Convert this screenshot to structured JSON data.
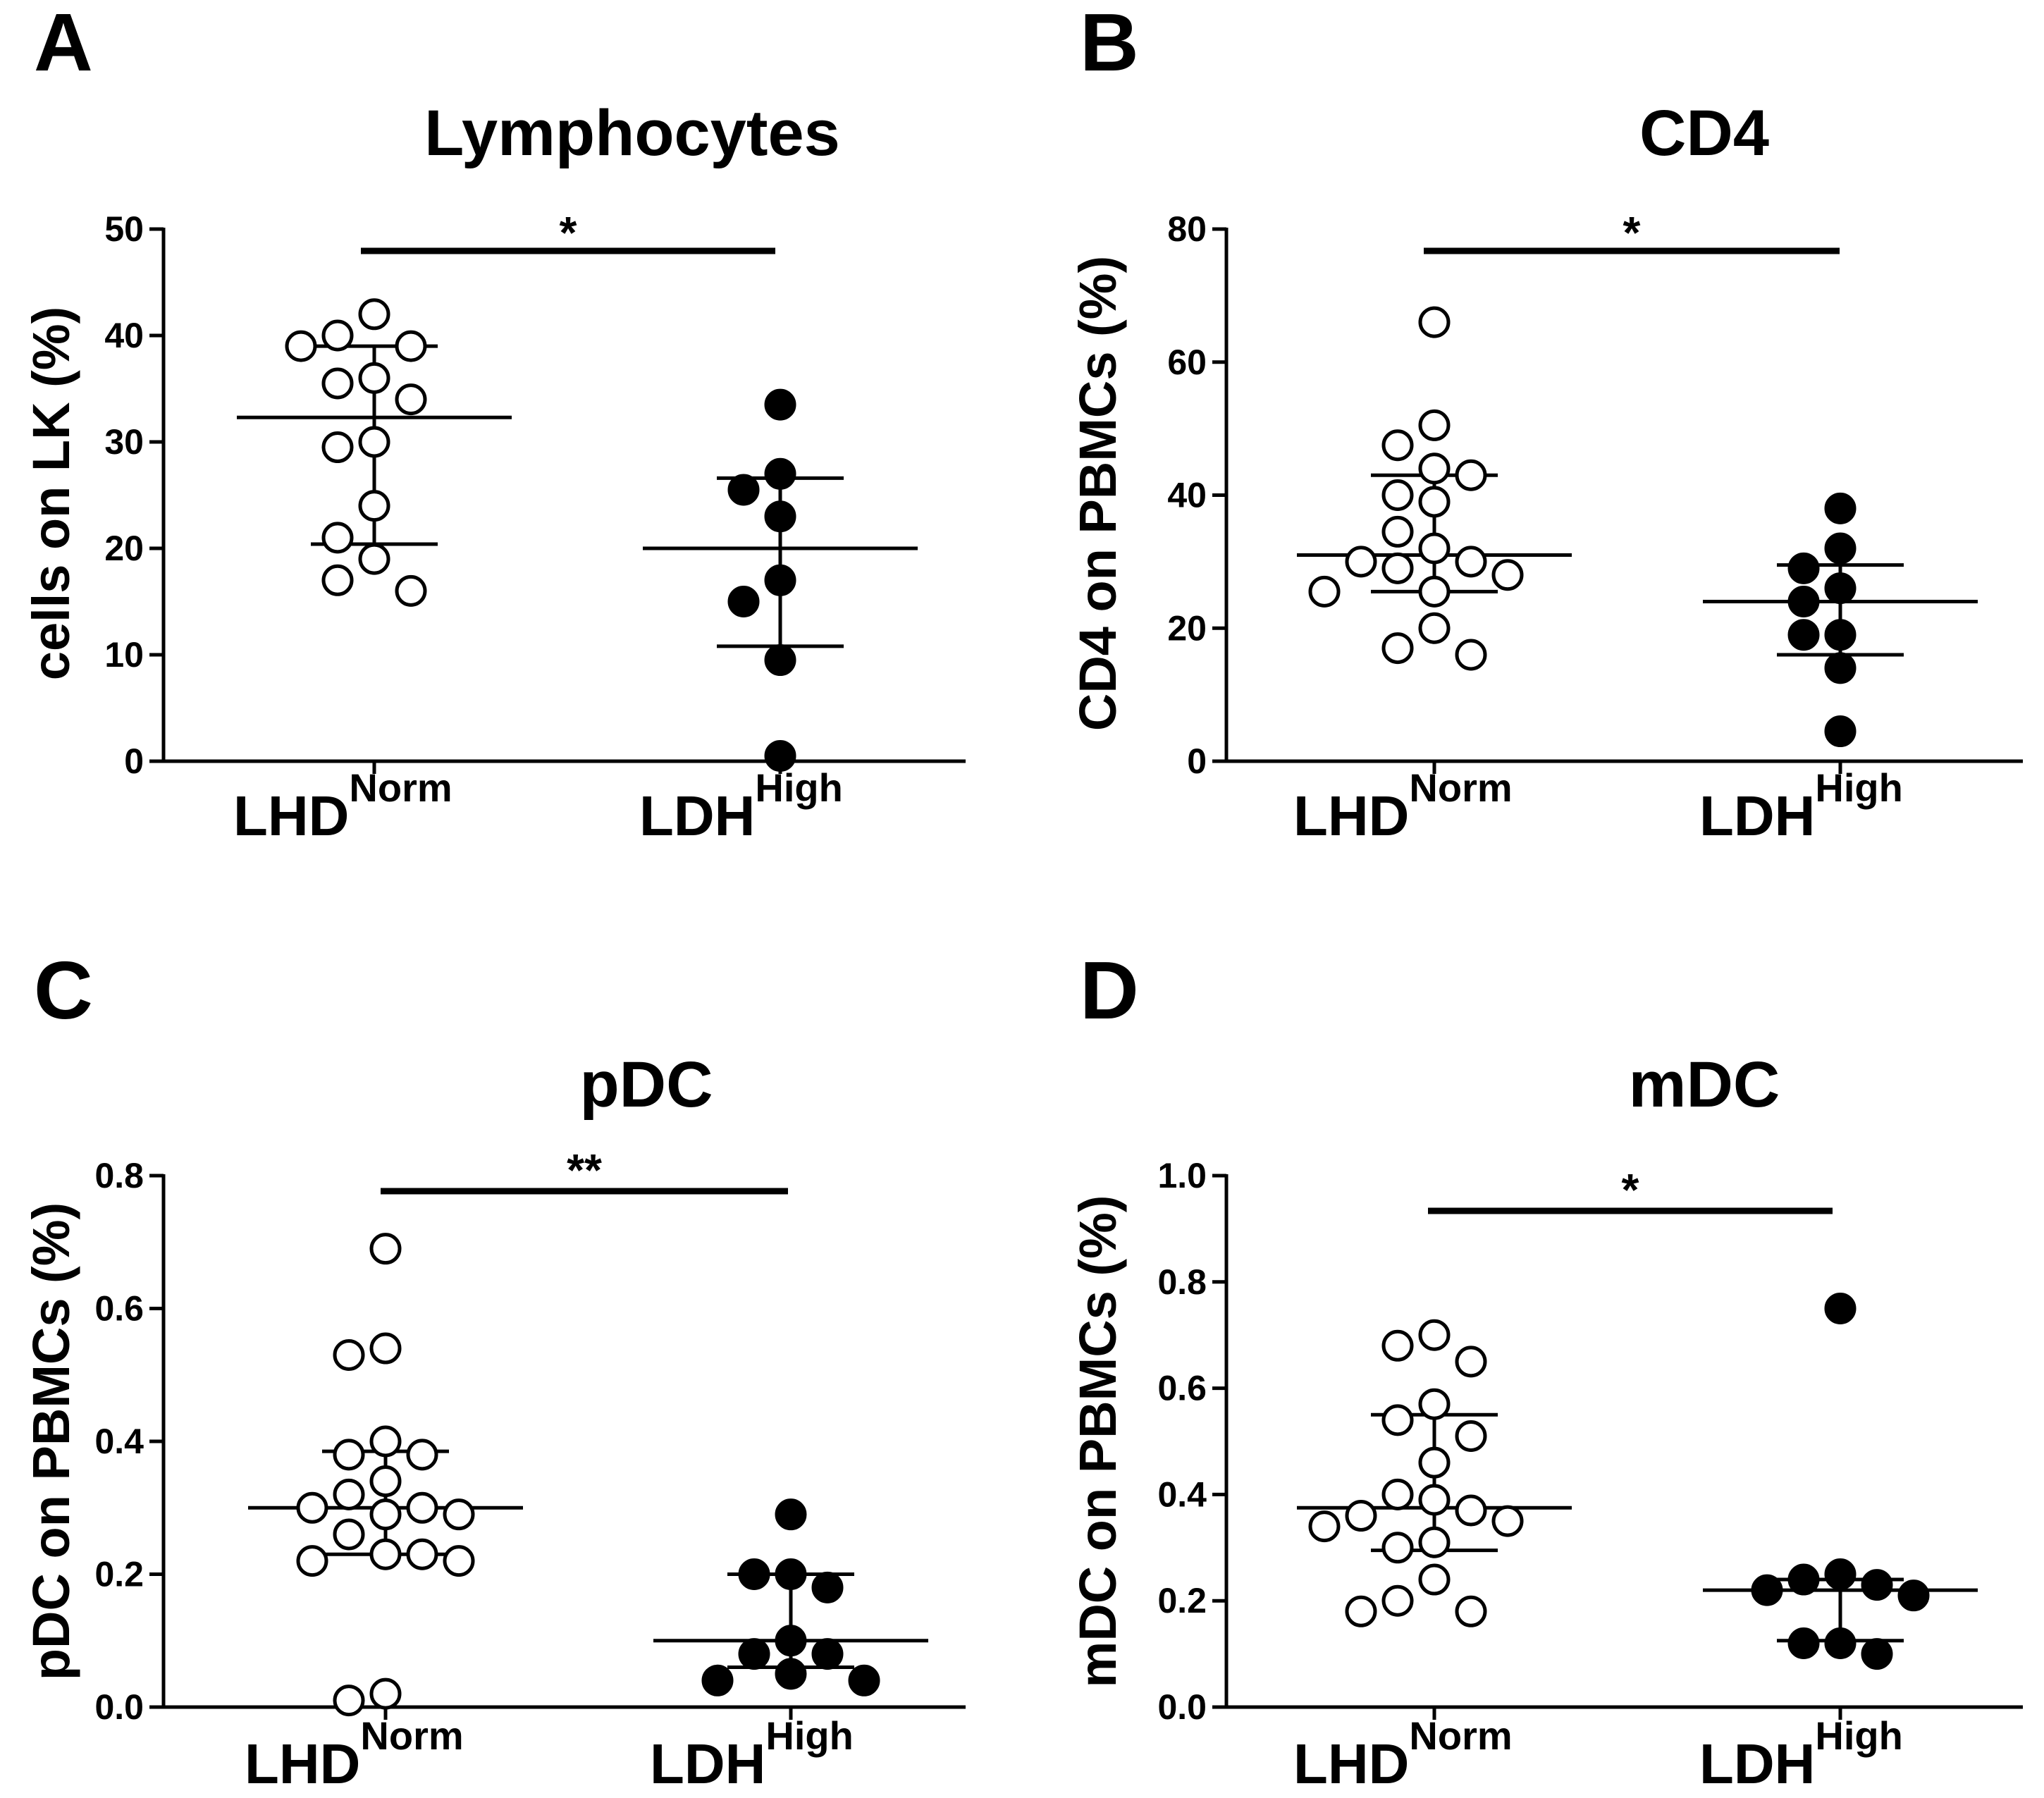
{
  "chart_data": [
    {
      "panel": "A",
      "type": "scatter",
      "title": "Lymphocytes",
      "ylabel": "cells on LK (%)",
      "ylim": [
        0,
        50
      ],
      "yticks": [
        "0",
        "10",
        "20",
        "30",
        "40",
        "50"
      ],
      "categories": [
        {
          "main": "LHD",
          "sup": "Norm"
        },
        {
          "main": "LDH",
          "sup": "High"
        }
      ],
      "groups": [
        {
          "filled": false,
          "values": [
            40,
            39,
            39,
            42,
            35.5,
            34,
            36,
            29.5,
            30,
            24,
            21,
            19,
            16,
            17
          ],
          "median": 32.3,
          "q1": 20.4,
          "q3": 39
        },
        {
          "filled": true,
          "values": [
            33.5,
            27,
            25.5,
            23,
            17,
            15,
            9.5,
            0.5
          ],
          "median": 20,
          "q1": 10.8,
          "q3": 26.6
        }
      ],
      "significance": "*"
    },
    {
      "panel": "B",
      "type": "scatter",
      "title": "CD4",
      "ylabel": "CD4 on PBMCs (%)",
      "ylim": [
        0,
        80
      ],
      "yticks": [
        "0",
        "20",
        "40",
        "60",
        "80"
      ],
      "categories": [
        {
          "main": "LHD",
          "sup": "Norm"
        },
        {
          "main": "LDH",
          "sup": "High"
        }
      ],
      "groups": [
        {
          "filled": false,
          "values": [
            66,
            50.5,
            47.5,
            44,
            43,
            40,
            39,
            34.5,
            32,
            30,
            30,
            29,
            28,
            25.5,
            25.5,
            20,
            17,
            16
          ],
          "median": 31,
          "q1": 25.5,
          "q3": 43
        },
        {
          "filled": true,
          "values": [
            38,
            32,
            29,
            26,
            24,
            19,
            19,
            14,
            4.5
          ],
          "median": 24,
          "q1": 16,
          "q3": 29.5
        }
      ],
      "significance": "*"
    },
    {
      "panel": "C",
      "type": "scatter",
      "title": "pDC",
      "ylabel": "pDC on PBMCs (%)",
      "ylim": [
        0,
        0.8
      ],
      "yticks": [
        "0.0",
        "0.2",
        "0.4",
        "0.6",
        "0.8"
      ],
      "categories": [
        {
          "main": "LHD",
          "sup": "Norm"
        },
        {
          "main": "LDH",
          "sup": "High"
        }
      ],
      "groups": [
        {
          "filled": false,
          "values": [
            0.69,
            0.54,
            0.53,
            0.4,
            0.38,
            0.38,
            0.34,
            0.32,
            0.3,
            0.3,
            0.29,
            0.29,
            0.26,
            0.23,
            0.23,
            0.22,
            0.22,
            0.02,
            0.01
          ],
          "median": 0.3,
          "q1": 0.23,
          "q3": 0.385
        },
        {
          "filled": true,
          "values": [
            0.29,
            0.2,
            0.2,
            0.18,
            0.1,
            0.08,
            0.08,
            0.05,
            0.04,
            0.04
          ],
          "median": 0.1,
          "q1": 0.06,
          "q3": 0.2
        }
      ],
      "significance": "**"
    },
    {
      "panel": "D",
      "type": "scatter",
      "title": "mDC",
      "ylabel": "mDC on PBMCs (%)",
      "ylim": [
        0,
        1.0
      ],
      "yticks": [
        "0.0",
        "0.2",
        "0.4",
        "0.6",
        "0.8",
        "1.0"
      ],
      "categories": [
        {
          "main": "LHD",
          "sup": "Norm"
        },
        {
          "main": "LDH",
          "sup": "High"
        }
      ],
      "groups": [
        {
          "filled": false,
          "values": [
            0.7,
            0.68,
            0.65,
            0.57,
            0.54,
            0.51,
            0.46,
            0.4,
            0.39,
            0.37,
            0.36,
            0.34,
            0.35,
            0.31,
            0.3,
            0.24,
            0.2,
            0.18,
            0.18
          ],
          "median": 0.375,
          "q1": 0.295,
          "q3": 0.55
        },
        {
          "filled": true,
          "values": [
            0.75,
            0.25,
            0.24,
            0.23,
            0.22,
            0.21,
            0.12,
            0.12,
            0.1
          ],
          "median": 0.22,
          "q1": 0.125,
          "q3": 0.24
        }
      ],
      "significance": "*"
    }
  ]
}
